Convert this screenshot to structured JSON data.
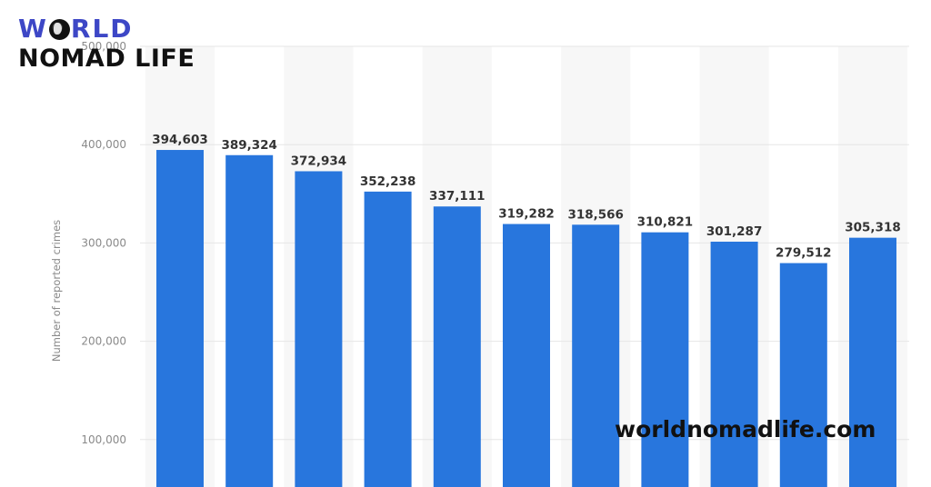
{
  "logo": {
    "line1": "W",
    "line1_rest": "RLD",
    "line2": "NOMAD LIFE"
  },
  "watermark": "worldnomadlife.com",
  "colors": {
    "bar": "#2876dd",
    "grid": "#e6e6e6",
    "band": "#f7f7f7",
    "logo_blue": "#3d47c6"
  },
  "chart_data": {
    "type": "bar",
    "title": "",
    "xlabel": "",
    "ylabel": "Number of reported crimes",
    "ylim": [
      0,
      500000
    ],
    "yticks": [
      {
        "value": 100000,
        "label": "100,000"
      },
      {
        "value": 200000,
        "label": "200,000"
      },
      {
        "value": 300000,
        "label": "300,000"
      },
      {
        "value": 400000,
        "label": "400,000"
      },
      {
        "value": 500000,
        "label": "500,000"
      }
    ],
    "values": [
      394603,
      389324,
      372934,
      352238,
      337111,
      319282,
      318566,
      310821,
      301287,
      279512,
      305318
    ],
    "labels": [
      "394,603",
      "389,324",
      "372,934",
      "352,238",
      "337,111",
      "319,282",
      "318,566",
      "310,821",
      "301,287",
      "279,512",
      "305,318"
    ],
    "grid": true,
    "legend": "none"
  }
}
